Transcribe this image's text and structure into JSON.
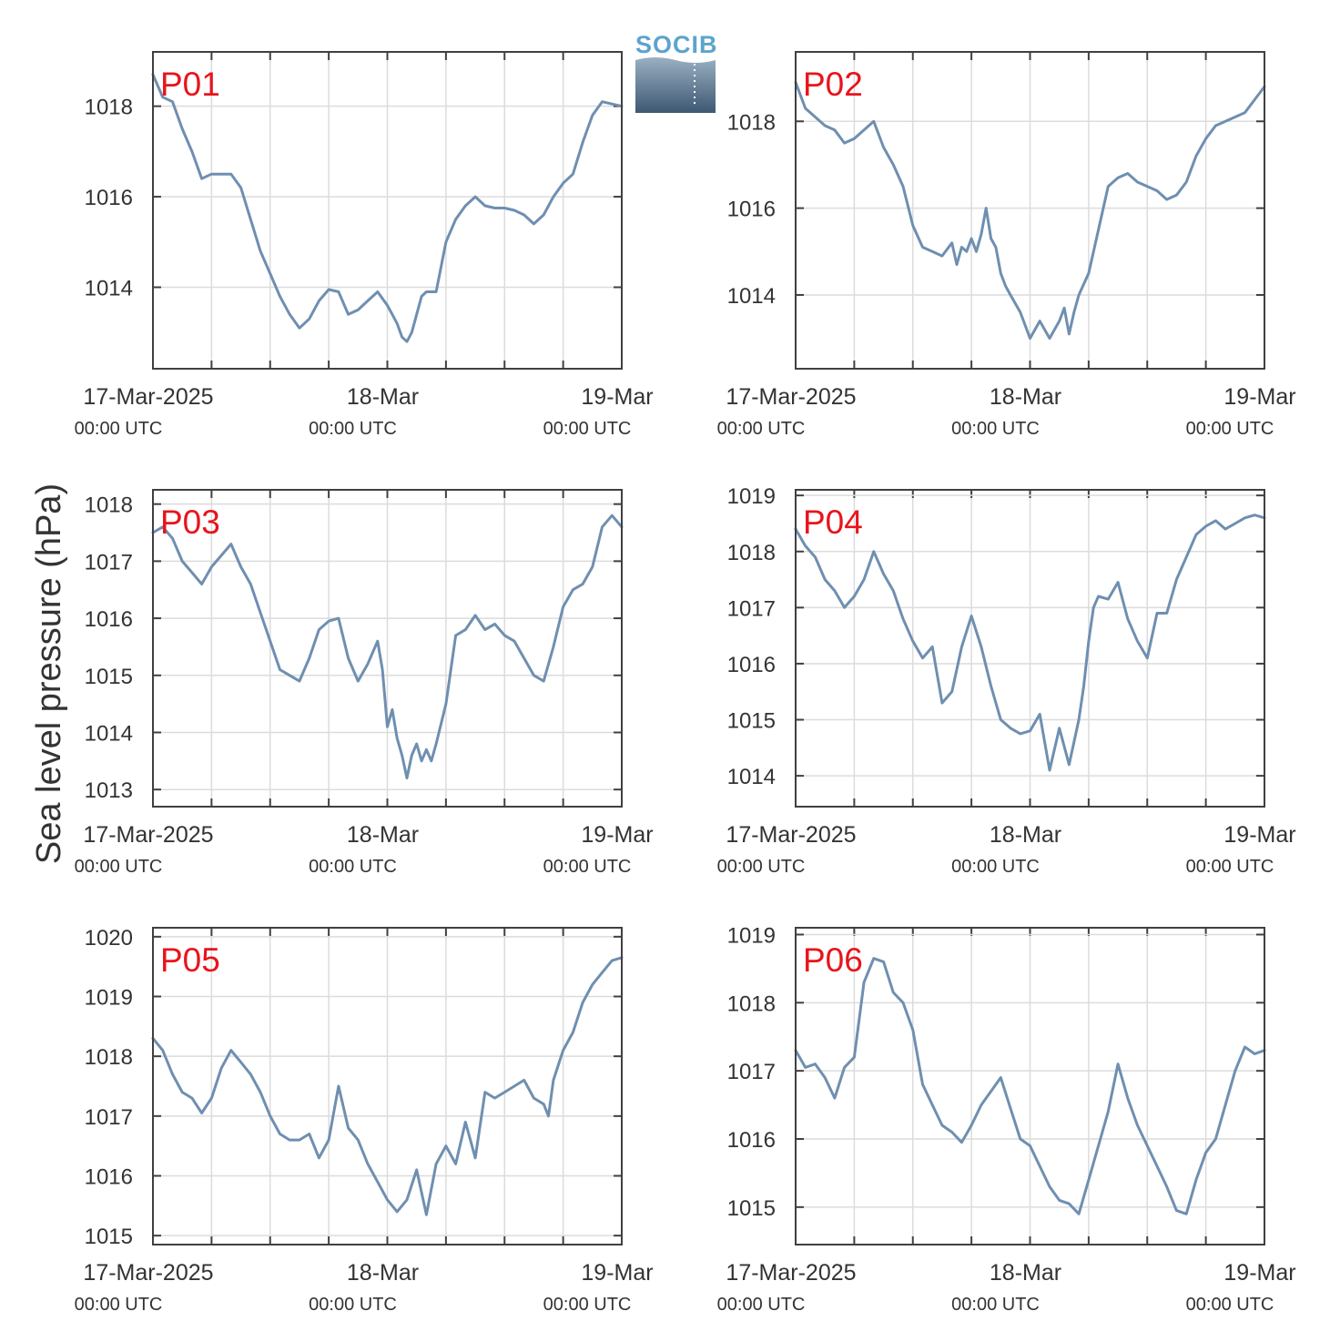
{
  "logo": {
    "text": "SOCIB",
    "color": "#5da3cf"
  },
  "ylabel": "Sea level pressure (hPa)",
  "colors": {
    "line": "#6f8fb0",
    "title": "#e8141c",
    "axis": "#404040",
    "grid": "#dcdcdc"
  },
  "chart_data": [
    {
      "type": "line",
      "title": "P01",
      "x_tick_labels": [
        {
          "date": "17-Mar-2025",
          "time": "00:00 UTC"
        },
        {
          "date": "18-Mar",
          "time": "00:00 UTC"
        },
        {
          "date": "19-Mar",
          "time": "00:00 UTC"
        }
      ],
      "xlim_hours": [
        0,
        48
      ],
      "ylim": [
        1012.2,
        1019.2
      ],
      "yticks": [
        1014,
        1016,
        1018
      ],
      "grid": true,
      "series": [
        {
          "x": [
            0,
            1,
            2,
            3,
            4,
            5,
            6,
            7,
            8,
            9,
            10,
            11,
            12,
            13,
            14,
            15,
            16,
            17,
            18,
            19,
            20,
            21,
            22,
            23,
            24,
            24.5,
            25,
            25.5,
            26,
            26.5,
            27,
            27.5,
            28,
            29,
            30,
            31,
            32,
            33,
            34,
            35,
            36,
            37,
            38,
            39,
            40,
            41,
            42,
            43,
            44,
            45,
            46,
            47,
            48
          ],
          "y": [
            1018.7,
            1018.2,
            1018.1,
            1017.5,
            1017.0,
            1016.4,
            1016.5,
            1016.5,
            1016.5,
            1016.2,
            1015.5,
            1014.8,
            1014.3,
            1013.8,
            1013.4,
            1013.1,
            1013.3,
            1013.7,
            1013.95,
            1013.9,
            1013.4,
            1013.5,
            1013.7,
            1013.9,
            1013.6,
            1013.4,
            1013.2,
            1012.9,
            1012.8,
            1013.0,
            1013.4,
            1013.8,
            1013.9,
            1013.9,
            1015.0,
            1015.5,
            1015.8,
            1016.0,
            1015.8,
            1015.75,
            1015.75,
            1015.7,
            1015.6,
            1015.4,
            1015.6,
            1016.0,
            1016.3,
            1016.5,
            1017.2,
            1017.8,
            1018.1,
            1018.05,
            1018.0
          ]
        }
      ]
    },
    {
      "type": "line",
      "title": "P02",
      "x_tick_labels": [
        {
          "date": "17-Mar-2025",
          "time": "00:00 UTC"
        },
        {
          "date": "18-Mar",
          "time": "00:00 UTC"
        },
        {
          "date": "19-Mar",
          "time": "00:00 UTC"
        }
      ],
      "xlim_hours": [
        0,
        48
      ],
      "ylim": [
        1012.3,
        1019.6
      ],
      "yticks": [
        1014,
        1016,
        1018
      ],
      "grid": true,
      "series": [
        {
          "x": [
            0,
            1,
            2,
            3,
            4,
            5,
            6,
            7,
            8,
            9,
            10,
            11,
            12,
            13,
            14,
            15,
            16,
            16.5,
            17,
            17.5,
            18,
            18.5,
            19,
            19.5,
            20,
            20.5,
            21,
            21.5,
            22,
            23,
            24,
            25,
            26,
            26.5,
            27,
            27.5,
            28,
            28.5,
            29,
            30,
            31,
            32,
            33,
            34,
            35,
            36,
            37,
            38,
            39,
            40,
            41,
            42,
            43,
            44,
            45,
            46,
            47,
            48
          ],
          "y": [
            1018.9,
            1018.3,
            1018.1,
            1017.9,
            1017.8,
            1017.5,
            1017.6,
            1017.8,
            1018.0,
            1017.4,
            1017.0,
            1016.5,
            1015.6,
            1015.1,
            1015.0,
            1014.9,
            1015.2,
            1014.7,
            1015.1,
            1015.0,
            1015.3,
            1015.0,
            1015.4,
            1016.0,
            1015.3,
            1015.1,
            1014.5,
            1014.2,
            1014.0,
            1013.6,
            1013.0,
            1013.4,
            1013.0,
            1013.2,
            1013.4,
            1013.7,
            1013.1,
            1013.6,
            1014.0,
            1014.5,
            1015.5,
            1016.5,
            1016.7,
            1016.8,
            1016.6,
            1016.5,
            1016.4,
            1016.2,
            1016.3,
            1016.6,
            1017.2,
            1017.6,
            1017.9,
            1018.0,
            1018.1,
            1018.2,
            1018.5,
            1018.8
          ]
        }
      ]
    },
    {
      "type": "line",
      "title": "P03",
      "x_tick_labels": [
        {
          "date": "17-Mar-2025",
          "time": "00:00 UTC"
        },
        {
          "date": "18-Mar",
          "time": "00:00 UTC"
        },
        {
          "date": "19-Mar",
          "time": "00:00 UTC"
        }
      ],
      "xlim_hours": [
        0,
        48
      ],
      "ylim": [
        1012.7,
        1018.25
      ],
      "yticks": [
        1013,
        1014,
        1015,
        1016,
        1017,
        1018
      ],
      "grid": true,
      "series": [
        {
          "x": [
            0,
            1,
            2,
            3,
            4,
            5,
            6,
            7,
            8,
            9,
            10,
            11,
            12,
            13,
            14,
            15,
            16,
            17,
            18,
            19,
            20,
            21,
            22,
            23,
            23.5,
            24,
            24.5,
            25,
            25.5,
            26,
            26.5,
            27,
            27.5,
            28,
            28.5,
            29,
            30,
            31,
            32,
            33,
            34,
            35,
            36,
            37,
            38,
            39,
            40,
            41,
            42,
            43,
            44,
            45,
            46,
            47,
            48
          ],
          "y": [
            1017.5,
            1017.6,
            1017.4,
            1017.0,
            1016.8,
            1016.6,
            1016.9,
            1017.1,
            1017.3,
            1016.9,
            1016.6,
            1016.1,
            1015.6,
            1015.1,
            1015.0,
            1014.9,
            1015.3,
            1015.8,
            1015.95,
            1016.0,
            1015.3,
            1014.9,
            1015.2,
            1015.6,
            1015.1,
            1014.1,
            1014.4,
            1013.9,
            1013.6,
            1013.2,
            1013.6,
            1013.8,
            1013.5,
            1013.7,
            1013.5,
            1013.8,
            1014.5,
            1015.7,
            1015.8,
            1016.05,
            1015.8,
            1015.9,
            1015.7,
            1015.6,
            1015.3,
            1015.0,
            1014.9,
            1015.5,
            1016.2,
            1016.5,
            1016.6,
            1016.9,
            1017.6,
            1017.8,
            1017.6
          ]
        }
      ]
    },
    {
      "type": "line",
      "title": "P04",
      "x_tick_labels": [
        {
          "date": "17-Mar-2025",
          "time": "00:00 UTC"
        },
        {
          "date": "18-Mar",
          "time": "00:00 UTC"
        },
        {
          "date": "19-Mar",
          "time": "00:00 UTC"
        }
      ],
      "xlim_hours": [
        0,
        48
      ],
      "ylim": [
        1013.45,
        1019.1
      ],
      "yticks": [
        1014,
        1015,
        1016,
        1017,
        1018,
        1019
      ],
      "grid": true,
      "series": [
        {
          "x": [
            0,
            1,
            2,
            3,
            4,
            5,
            6,
            7,
            8,
            9,
            10,
            11,
            12,
            13,
            14,
            15,
            16,
            17,
            18,
            19,
            20,
            21,
            22,
            23,
            24,
            25,
            26,
            27,
            28,
            29,
            29.5,
            30,
            30.5,
            31,
            32,
            33,
            34,
            35,
            36,
            37,
            38,
            39,
            40,
            41,
            42,
            43,
            44,
            45,
            46,
            47,
            48
          ],
          "y": [
            1018.4,
            1018.1,
            1017.9,
            1017.5,
            1017.3,
            1017.0,
            1017.2,
            1017.5,
            1018.0,
            1017.6,
            1017.3,
            1016.8,
            1016.4,
            1016.1,
            1016.3,
            1015.3,
            1015.5,
            1016.3,
            1016.85,
            1016.3,
            1015.6,
            1015.0,
            1014.85,
            1014.75,
            1014.8,
            1015.1,
            1014.1,
            1014.85,
            1014.2,
            1015.0,
            1015.6,
            1016.4,
            1017.0,
            1017.2,
            1017.15,
            1017.45,
            1016.8,
            1016.4,
            1016.1,
            1016.9,
            1016.9,
            1017.5,
            1017.9,
            1018.3,
            1018.45,
            1018.55,
            1018.4,
            1018.5,
            1018.6,
            1018.65,
            1018.6
          ]
        }
      ]
    },
    {
      "type": "line",
      "title": "P05",
      "x_tick_labels": [
        {
          "date": "17-Mar-2025",
          "time": "00:00 UTC"
        },
        {
          "date": "18-Mar",
          "time": "00:00 UTC"
        },
        {
          "date": "19-Mar",
          "time": "00:00 UTC"
        }
      ],
      "xlim_hours": [
        0,
        48
      ],
      "ylim": [
        1014.85,
        1020.15
      ],
      "yticks": [
        1015,
        1016,
        1017,
        1018,
        1019,
        1020
      ],
      "grid": true,
      "series": [
        {
          "x": [
            0,
            1,
            2,
            3,
            4,
            5,
            6,
            7,
            8,
            9,
            10,
            11,
            12,
            13,
            14,
            15,
            16,
            17,
            18,
            19,
            20,
            21,
            22,
            23,
            24,
            25,
            26,
            27,
            28,
            29,
            30,
            31,
            32,
            33,
            34,
            35,
            36,
            37,
            38,
            39,
            40,
            40.5,
            41,
            42,
            43,
            44,
            45,
            46,
            47,
            48
          ],
          "y": [
            1018.3,
            1018.1,
            1017.7,
            1017.4,
            1017.3,
            1017.05,
            1017.3,
            1017.8,
            1018.1,
            1017.9,
            1017.7,
            1017.4,
            1017.0,
            1016.7,
            1016.6,
            1016.6,
            1016.7,
            1016.3,
            1016.6,
            1017.5,
            1016.8,
            1016.6,
            1016.2,
            1015.9,
            1015.6,
            1015.4,
            1015.6,
            1016.1,
            1015.35,
            1016.2,
            1016.5,
            1016.2,
            1016.9,
            1016.3,
            1017.4,
            1017.3,
            1017.4,
            1017.5,
            1017.6,
            1017.3,
            1017.2,
            1017.0,
            1017.6,
            1018.1,
            1018.4,
            1018.9,
            1019.2,
            1019.4,
            1019.6,
            1019.65
          ]
        }
      ]
    },
    {
      "type": "line",
      "title": "P06",
      "x_tick_labels": [
        {
          "date": "17-Mar-2025",
          "time": "00:00 UTC"
        },
        {
          "date": "18-Mar",
          "time": "00:00 UTC"
        },
        {
          "date": "19-Mar",
          "time": "00:00 UTC"
        }
      ],
      "xlim_hours": [
        0,
        48
      ],
      "ylim": [
        1014.45,
        1019.1
      ],
      "yticks": [
        1015,
        1016,
        1017,
        1018,
        1019
      ],
      "grid": true,
      "series": [
        {
          "x": [
            0,
            1,
            2,
            3,
            4,
            5,
            6,
            7,
            8,
            9,
            10,
            11,
            12,
            13,
            14,
            15,
            16,
            17,
            18,
            19,
            20,
            21,
            22,
            23,
            24,
            25,
            26,
            27,
            28,
            29,
            30,
            31,
            32,
            33,
            34,
            35,
            36,
            37,
            38,
            39,
            40,
            41,
            42,
            43,
            44,
            45,
            46,
            47,
            48
          ],
          "y": [
            1017.3,
            1017.05,
            1017.1,
            1016.9,
            1016.6,
            1017.05,
            1017.2,
            1018.3,
            1018.65,
            1018.6,
            1018.15,
            1018.0,
            1017.6,
            1016.8,
            1016.5,
            1016.2,
            1016.1,
            1015.95,
            1016.2,
            1016.5,
            1016.7,
            1016.9,
            1016.45,
            1016.0,
            1015.9,
            1015.6,
            1015.3,
            1015.1,
            1015.05,
            1014.9,
            1015.4,
            1015.9,
            1016.4,
            1017.1,
            1016.6,
            1016.2,
            1015.9,
            1015.6,
            1015.3,
            1014.95,
            1014.9,
            1015.4,
            1015.8,
            1016.0,
            1016.5,
            1017.0,
            1017.35,
            1017.25,
            1017.3
          ]
        }
      ]
    }
  ]
}
